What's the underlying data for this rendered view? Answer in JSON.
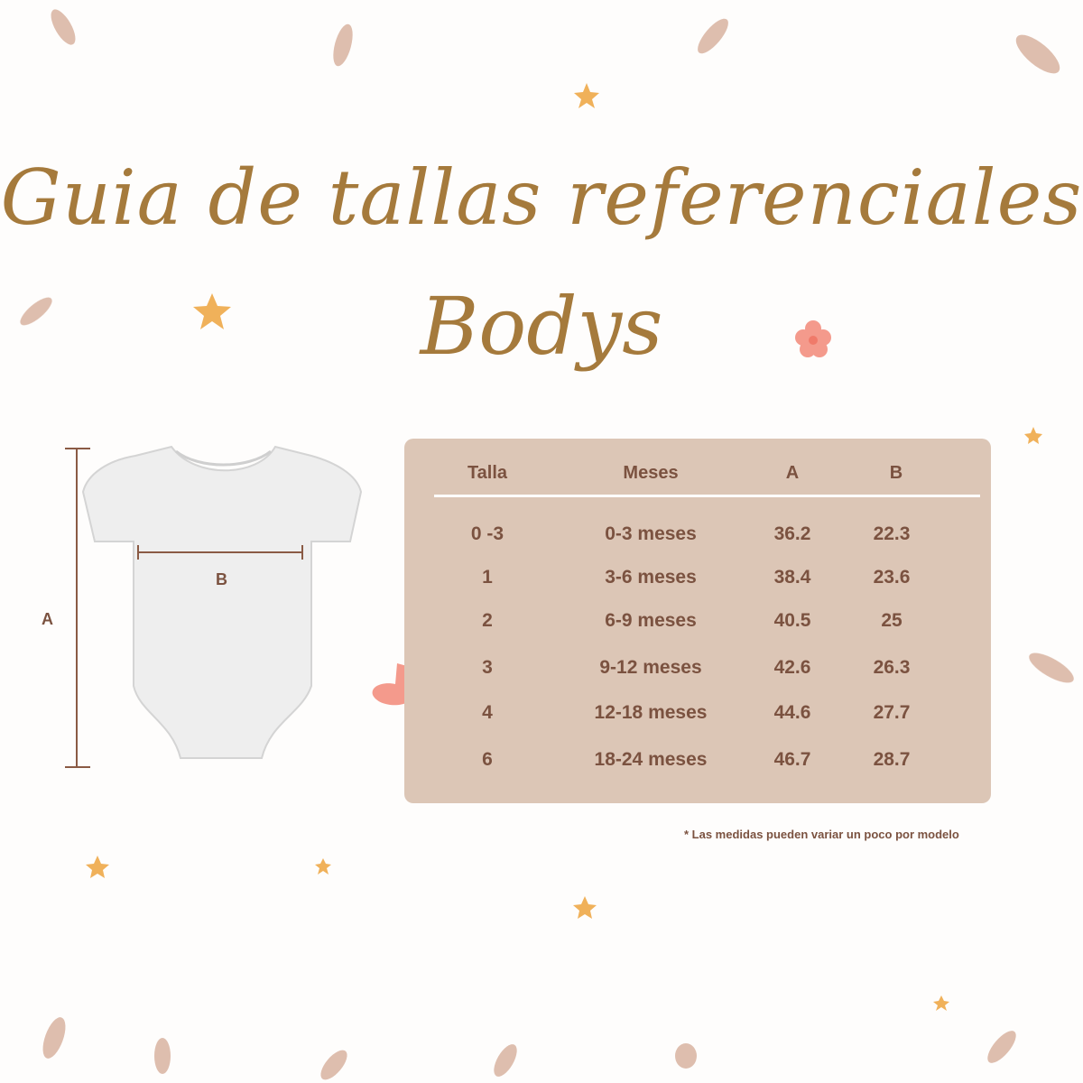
{
  "title": {
    "line1": "Guia de tallas referenciales",
    "line2": "Bodys"
  },
  "diagram": {
    "label_a": "A",
    "label_b": "B"
  },
  "table": {
    "headers": [
      "Talla",
      "Meses",
      "A",
      "B"
    ],
    "rows": [
      [
        "0 -3",
        "0-3 meses",
        "36.2",
        "22.3"
      ],
      [
        "1",
        "3-6 meses",
        "38.4",
        "23.6"
      ],
      [
        "2",
        "6-9 meses",
        "40.5",
        "25"
      ],
      [
        "3",
        "9-12 meses",
        "42.6",
        "26.3"
      ],
      [
        "4",
        "12-18 meses",
        "44.6",
        "27.7"
      ],
      [
        "6",
        "18-24 meses",
        "46.7",
        "28.7"
      ]
    ]
  },
  "note": "*   Las medidas pueden variar un poco por modelo",
  "colors": {
    "title": "#a57a3c",
    "table_bg": "#dcc6b6",
    "text": "#7b5240",
    "accent_star": "#f0b15a"
  }
}
